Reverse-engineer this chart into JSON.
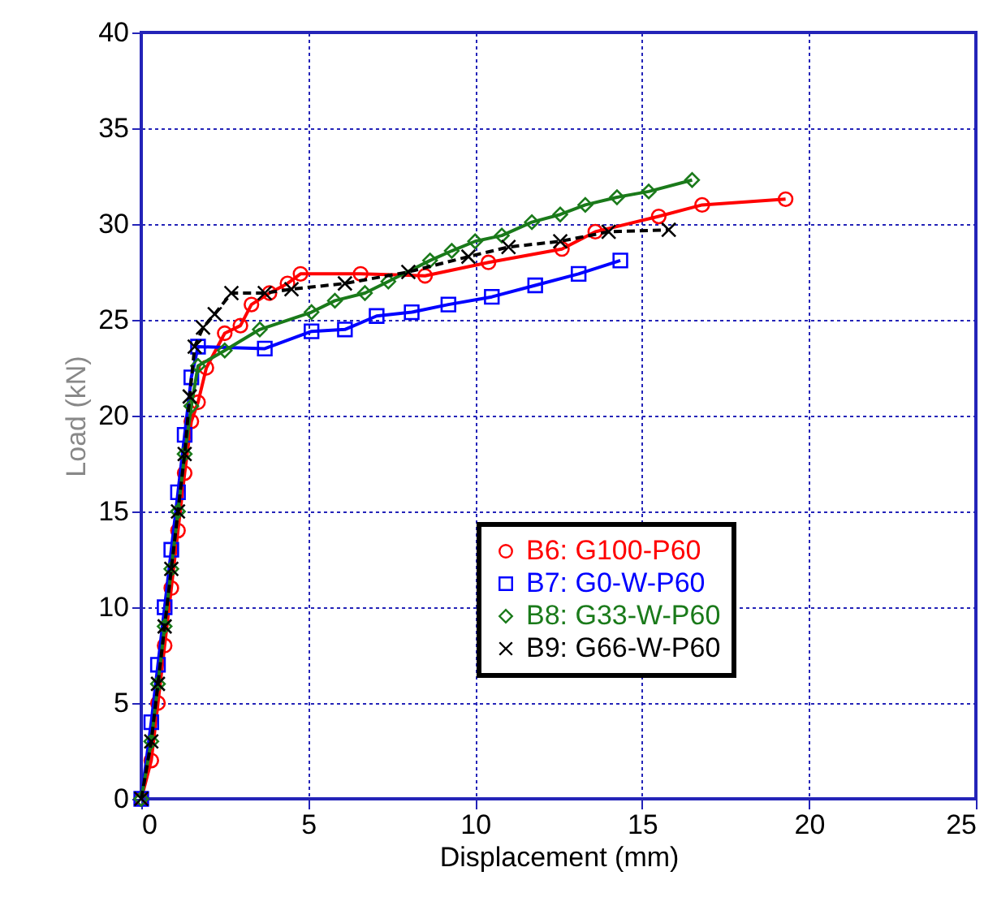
{
  "chart_data": {
    "type": "line",
    "xlabel": "Displacement (mm)",
    "ylabel": "Load (kN)",
    "xlim": [
      0,
      25
    ],
    "ylim": [
      0,
      40
    ],
    "xticks": [
      0,
      5,
      10,
      15,
      20,
      25
    ],
    "yticks": [
      0,
      5,
      10,
      15,
      20,
      25,
      30,
      35,
      40
    ],
    "grid": true,
    "legend": "bottom right",
    "series": [
      {
        "name": "B6: G100-P60",
        "color": "#ff0000",
        "marker": "circle",
        "line_style": "solid",
        "x": [
          0,
          0.3,
          0.5,
          0.7,
          0.9,
          1.1,
          1.3,
          1.5,
          1.7,
          1.95,
          2.5,
          2.97,
          3.3,
          3.84,
          4.38,
          4.77,
          6.57,
          8.5,
          10.4,
          12.6,
          13.6,
          15.5,
          16.8,
          19.3
        ],
        "values": [
          0,
          2,
          5,
          8,
          11,
          14,
          17,
          19.7,
          20.7,
          22.5,
          24.3,
          24.7,
          25.8,
          26.4,
          26.9,
          27.4,
          27.4,
          27.3,
          28,
          28.7,
          29.6,
          30.4,
          31,
          31.3
        ]
      },
      {
        "name": "B7: G0-W-P60",
        "color": "#0000ff",
        "marker": "square",
        "line_style": "solid",
        "x": [
          0,
          0.3,
          0.5,
          0.7,
          0.9,
          1.1,
          1.3,
          1.5,
          1.7,
          3.7,
          5.1,
          6.1,
          7.05,
          8.1,
          9.2,
          10.5,
          11.8,
          13.1,
          14.35
        ],
        "values": [
          0,
          4,
          7,
          10,
          13,
          16,
          19,
          22,
          23.6,
          23.5,
          24.4,
          24.5,
          25.2,
          25.4,
          25.8,
          26.2,
          26.8,
          27.4,
          28.1
        ]
      },
      {
        "name": "B8: G33-W-P60",
        "color": "#1a7a1a",
        "marker": "diamond",
        "line_style": "solid",
        "x": [
          0,
          0.3,
          0.5,
          0.7,
          0.9,
          1.1,
          1.3,
          1.5,
          1.7,
          2.5,
          3.55,
          5.1,
          5.8,
          6.7,
          7.4,
          8.65,
          9.3,
          10,
          10.8,
          11.7,
          12.55,
          13.3,
          14.25,
          15.2,
          16.5
        ],
        "values": [
          0,
          3,
          6,
          9,
          12,
          15,
          18,
          20.5,
          22.6,
          23.4,
          24.5,
          25.4,
          26,
          26.4,
          27,
          28.1,
          28.6,
          29.1,
          29.4,
          30.1,
          30.5,
          31,
          31.4,
          31.7,
          32.3
        ]
      },
      {
        "name": "B9: G66-W-P60",
        "color": "#000000",
        "marker": "cross",
        "line_style": "dashed",
        "x": [
          0,
          0.3,
          0.5,
          0.7,
          0.9,
          1.1,
          1.3,
          1.45,
          1.6,
          1.85,
          2.2,
          2.7,
          3.7,
          4.5,
          6.1,
          8,
          9.8,
          11,
          12.55,
          14,
          15.8
        ],
        "values": [
          0,
          3,
          6,
          9,
          12,
          15,
          18,
          21,
          23.6,
          24.6,
          25.3,
          26.4,
          26.4,
          26.6,
          26.9,
          27.5,
          28.3,
          28.8,
          29.1,
          29.6,
          29.7
        ]
      }
    ]
  }
}
